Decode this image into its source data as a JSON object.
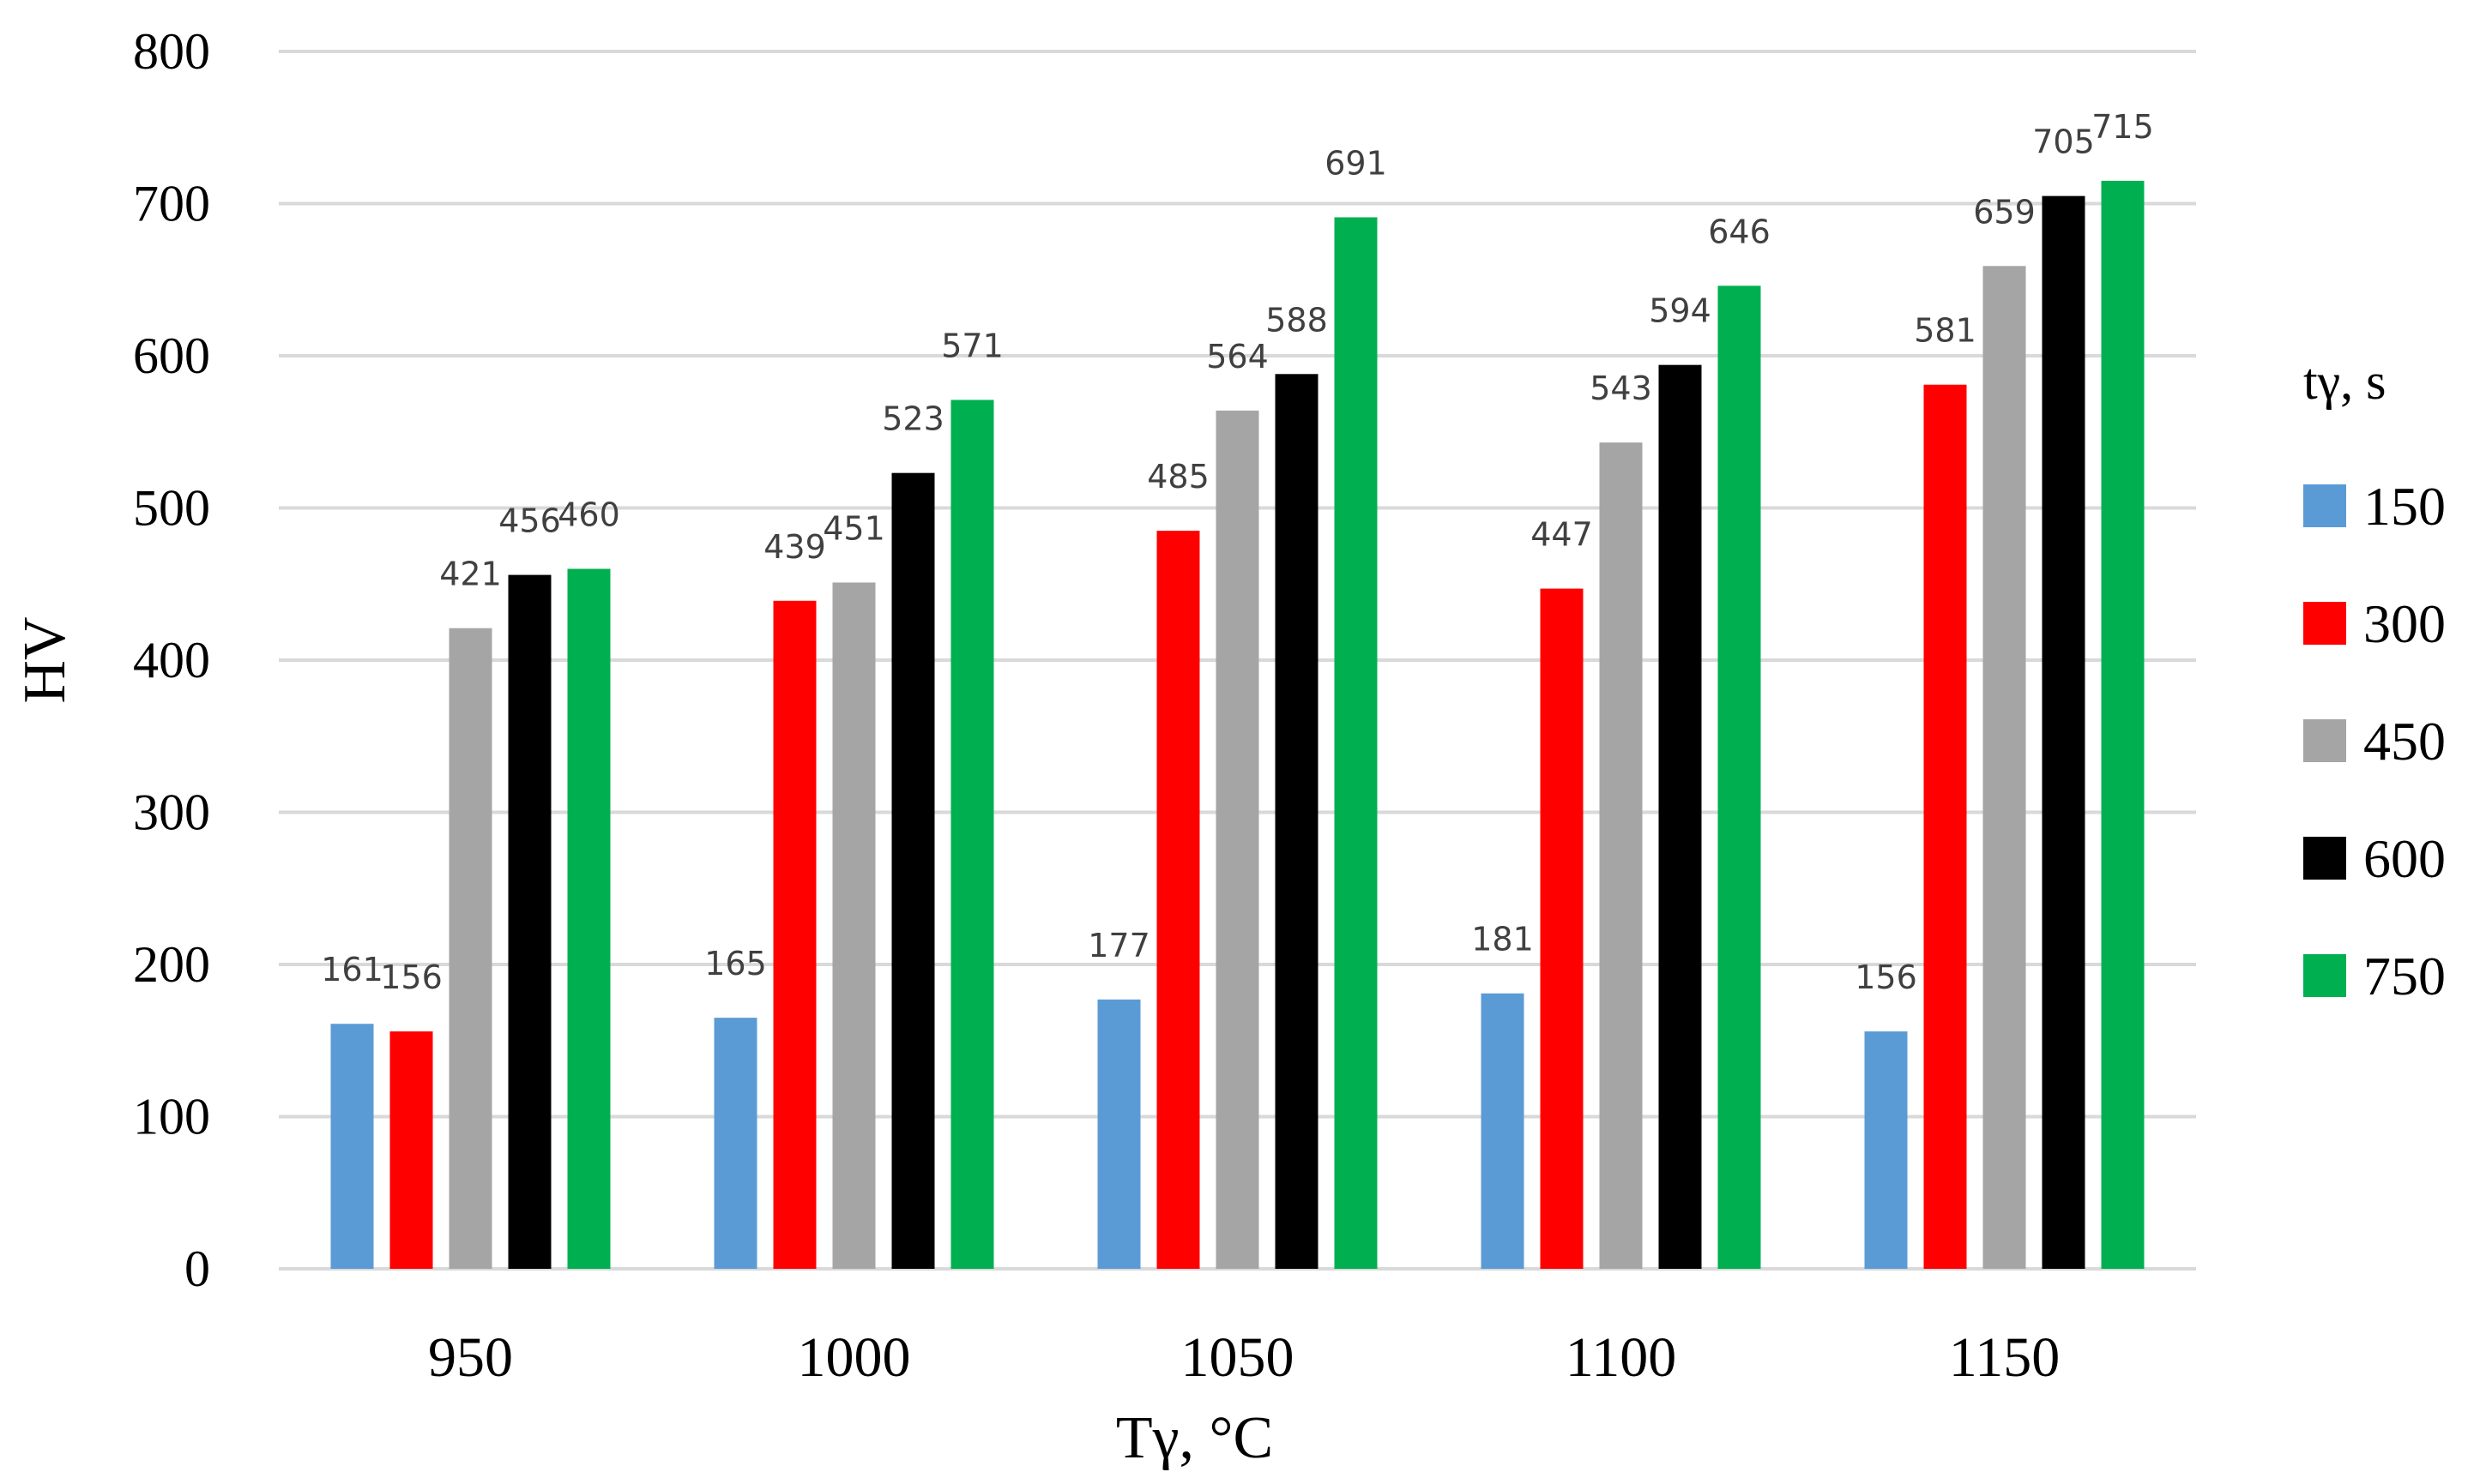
{
  "chart_data": {
    "type": "bar",
    "title": "",
    "xlabel": "Tγ, °C",
    "ylabel": "HV",
    "categories": [
      "950",
      "1000",
      "1050",
      "1100",
      "1150"
    ],
    "ylim": [
      0,
      800
    ],
    "yticks": [
      0,
      100,
      200,
      300,
      400,
      500,
      600,
      700,
      800
    ],
    "grid": true,
    "legend_title": "tγ, s",
    "legend_position": "right",
    "series": [
      {
        "name": "150",
        "color": "#5b9bd5",
        "values": [
          161,
          165,
          177,
          181,
          156
        ]
      },
      {
        "name": "300",
        "color": "#ff0000",
        "values": [
          156,
          439,
          485,
          447,
          581
        ]
      },
      {
        "name": "450",
        "color": "#a5a5a5",
        "values": [
          421,
          451,
          564,
          543,
          659
        ]
      },
      {
        "name": "600",
        "color": "#000000",
        "values": [
          456,
          523,
          588,
          594,
          705
        ]
      },
      {
        "name": "750",
        "color": "#00b050",
        "values": [
          460,
          571,
          691,
          646,
          715
        ]
      }
    ]
  }
}
